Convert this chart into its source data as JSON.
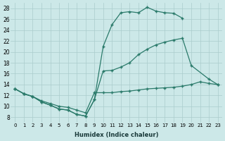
{
  "xlabel": "Humidex (Indice chaleur)",
  "background_color": "#cce8e8",
  "grid_color": "#aacccc",
  "line_color": "#2a7a6a",
  "xlim": [
    -0.5,
    23.5
  ],
  "ylim": [
    7,
    29
  ],
  "yticks": [
    8,
    10,
    12,
    14,
    16,
    18,
    20,
    22,
    24,
    26,
    28
  ],
  "xticks": [
    0,
    1,
    2,
    3,
    4,
    5,
    6,
    7,
    8,
    9,
    10,
    11,
    12,
    13,
    14,
    15,
    16,
    17,
    18,
    19,
    20,
    21,
    22,
    23
  ],
  "curve_top_x": [
    0,
    1,
    2,
    3,
    4,
    5,
    6,
    7,
    8,
    9,
    10,
    11,
    12,
    13,
    14,
    15,
    16,
    17,
    18,
    19
  ],
  "curve_top_y": [
    13.2,
    12.3,
    11.8,
    10.8,
    10.2,
    9.5,
    9.3,
    8.5,
    8.2,
    11.2,
    21.0,
    25.0,
    27.2,
    27.4,
    27.2,
    28.2,
    27.5,
    27.2,
    27.1,
    26.2
  ],
  "curve_mid_x": [
    0,
    1,
    2,
    3,
    4,
    5,
    6,
    7,
    8,
    9,
    10,
    11,
    12,
    13,
    14,
    15,
    16,
    17,
    18,
    19,
    20,
    22,
    23
  ],
  "curve_mid_y": [
    13.2,
    12.3,
    11.8,
    10.8,
    10.2,
    9.5,
    9.3,
    8.5,
    8.2,
    11.2,
    16.5,
    16.6,
    17.2,
    18.0,
    19.5,
    20.5,
    21.3,
    21.8,
    22.2,
    22.5,
    17.5,
    15.0,
    14.0
  ],
  "curve_bot_x": [
    0,
    1,
    2,
    3,
    4,
    5,
    6,
    7,
    8,
    9,
    10,
    11,
    12,
    13,
    14,
    15,
    16,
    17,
    18,
    19,
    20,
    21,
    22,
    23
  ],
  "curve_bot_y": [
    13.2,
    12.3,
    11.8,
    11.0,
    10.5,
    10.0,
    9.8,
    9.3,
    8.8,
    12.5,
    12.5,
    12.5,
    12.7,
    12.8,
    13.0,
    13.2,
    13.3,
    13.4,
    13.5,
    13.7,
    14.0,
    14.5,
    14.2,
    14.0
  ]
}
